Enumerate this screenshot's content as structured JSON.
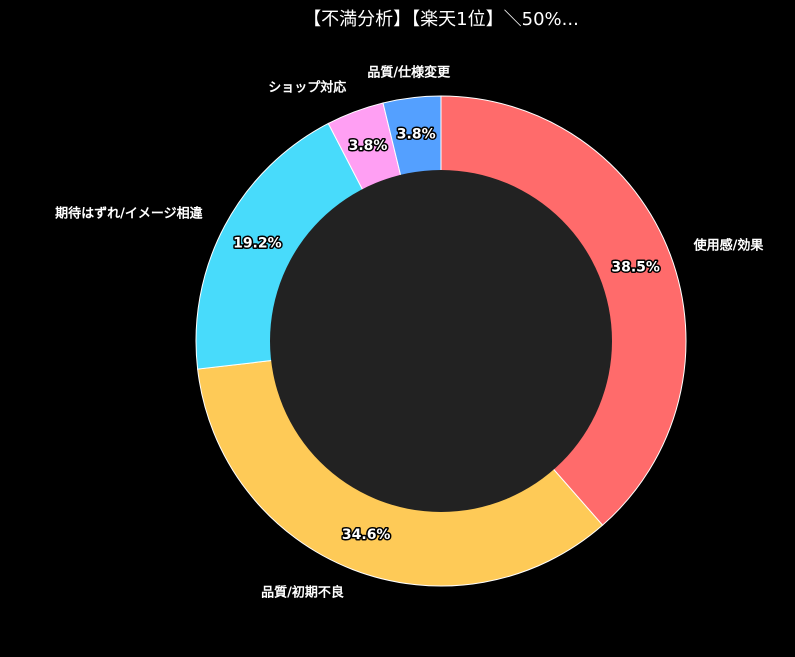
{
  "chart_data": {
    "type": "donut",
    "title": "【不満分析】【楽天1位】＼50%...",
    "categories": [
      "使用感/効果",
      "品質/初期不良",
      "期待はずれ/イメージ相違",
      "ショップ対応",
      "品質/仕様変更"
    ],
    "values": [
      38.5,
      34.6,
      19.2,
      3.8,
      3.8
    ],
    "value_labels": [
      "38.5%",
      "34.6%",
      "19.2%",
      "3.8%",
      "3.8%"
    ],
    "colors": [
      "#ff6b6b",
      "#feca57",
      "#48dbfb",
      "#ff9ff3",
      "#54a0ff"
    ]
  }
}
